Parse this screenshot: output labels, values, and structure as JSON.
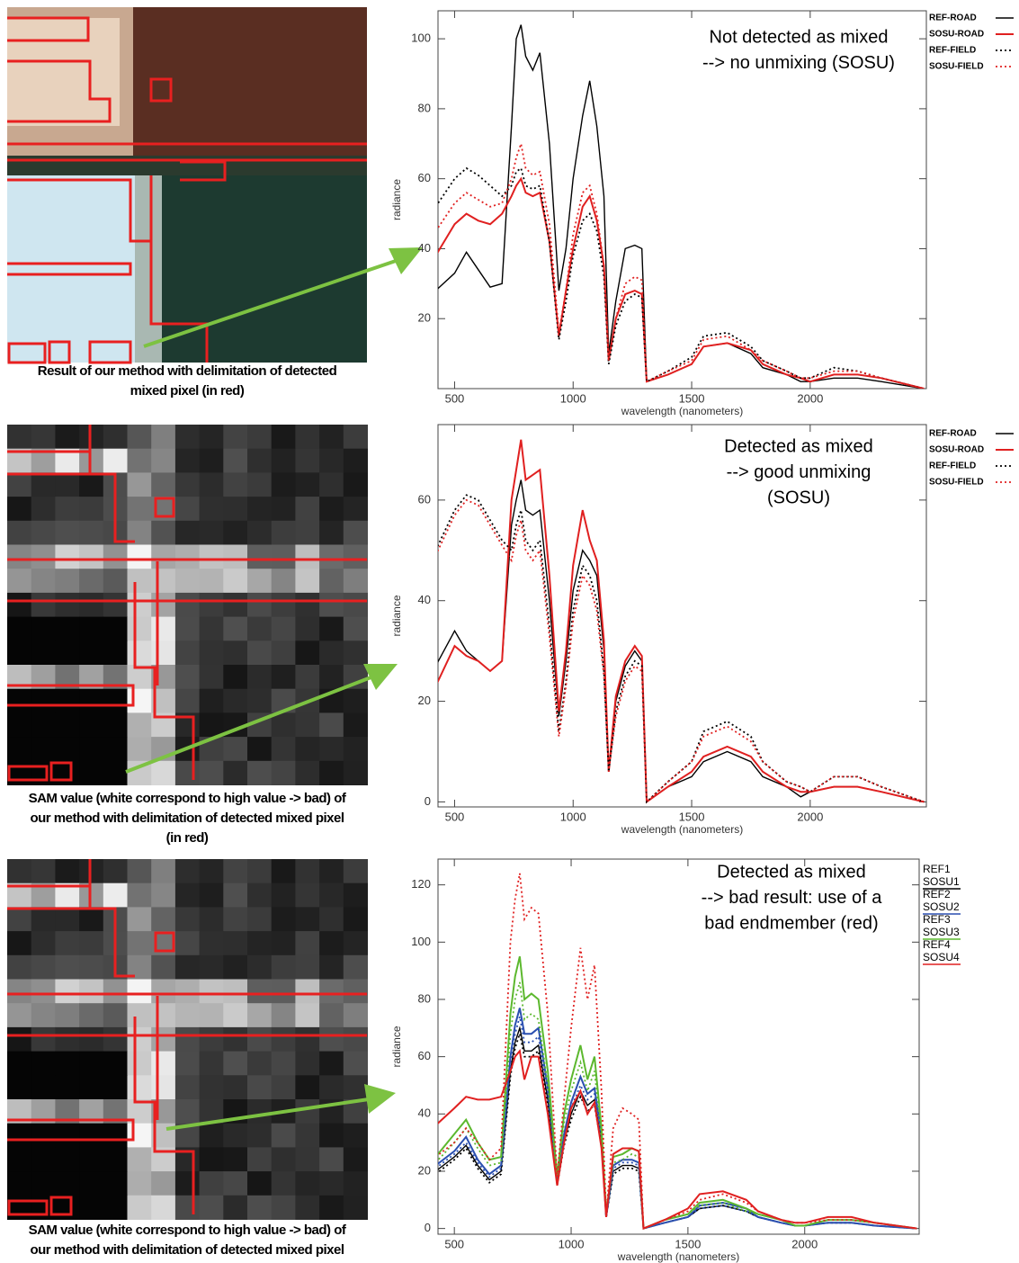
{
  "captions": [
    [
      "Result of our method with delimitation of detected",
      "mixed pixel (in red)"
    ],
    [
      "SAM value (white correspond to high value -> bad) of",
      "our method with delimitation of detected mixed pixel",
      "(in red)"
    ],
    [
      "SAM value (white correspond to high value -> bad) of",
      "our method with delimitation of detected mixed pixel"
    ]
  ],
  "chart_data": [
    {
      "type": "line",
      "annotation": [
        "Not detected as mixed",
        "--> no unmixing (SOSU)"
      ],
      "xlabel": "wavelength (nanometers)",
      "ylabel": "radiance",
      "legend_style": "line",
      "xlim": [
        430,
        2490
      ],
      "xticks": [
        500,
        1000,
        1500,
        2000
      ],
      "ylim": [
        0,
        108
      ],
      "yticks": [
        20,
        40,
        60,
        80,
        100
      ],
      "x": [
        420,
        500,
        550,
        600,
        650,
        700,
        740,
        760,
        780,
        800,
        830,
        860,
        900,
        940,
        970,
        1000,
        1040,
        1070,
        1100,
        1130,
        1150,
        1180,
        1220,
        1260,
        1290,
        1310,
        1400,
        1500,
        1550,
        1650,
        1750,
        1800,
        1900,
        1960,
        2000,
        2100,
        2200,
        2300,
        2480
      ],
      "series": [
        {
          "name": "REF-ROAD",
          "color": "#000000",
          "style": "solid",
          "values": [
            28,
            33,
            39,
            34,
            29,
            30,
            75,
            100,
            104,
            95,
            91,
            96,
            70,
            28,
            40,
            60,
            78,
            88,
            75,
            55,
            10,
            25,
            40,
            41,
            40,
            2,
            4,
            7,
            12,
            13,
            10,
            6,
            4,
            2,
            2,
            3,
            3,
            2,
            0
          ]
        },
        {
          "name": "SOSU-ROAD",
          "color": "#e02020",
          "style": "solid",
          "values": [
            38,
            47,
            50,
            48,
            47,
            50,
            55,
            58,
            60,
            56,
            55,
            56,
            42,
            15,
            28,
            40,
            52,
            55,
            48,
            35,
            8,
            20,
            27,
            28,
            27,
            2,
            4,
            7,
            12,
            13,
            11,
            7,
            4,
            3,
            2,
            4,
            4,
            3,
            0
          ]
        },
        {
          "name": "REF-FIELD",
          "color": "#000000",
          "style": "dotted",
          "values": [
            52,
            60,
            63,
            61,
            58,
            55,
            58,
            62,
            63,
            58,
            57,
            58,
            42,
            14,
            25,
            38,
            48,
            50,
            45,
            32,
            7,
            18,
            25,
            27,
            26,
            2,
            5,
            9,
            15,
            16,
            12,
            8,
            5,
            3,
            3,
            6,
            5,
            3,
            0
          ]
        },
        {
          "name": "SOSU-FIELD",
          "color": "#e02020",
          "style": "dotted",
          "values": [
            45,
            53,
            56,
            54,
            52,
            53,
            60,
            66,
            70,
            63,
            61,
            62,
            47,
            16,
            28,
            44,
            56,
            58,
            50,
            35,
            8,
            20,
            30,
            32,
            31,
            2,
            5,
            8,
            14,
            15,
            11,
            8,
            5,
            3,
            3,
            5,
            5,
            3,
            0
          ]
        }
      ]
    },
    {
      "type": "line",
      "annotation": [
        "Detected as mixed",
        "--> good unmixing",
        "(SOSU)"
      ],
      "xlabel": "wavelength (nanometers)",
      "ylabel": "radiance",
      "legend_style": "line",
      "xlim": [
        430,
        2490
      ],
      "xticks": [
        500,
        1000,
        1500,
        2000
      ],
      "ylim": [
        -1,
        75
      ],
      "yticks": [
        0,
        20,
        40,
        60
      ],
      "x": [
        420,
        500,
        550,
        600,
        650,
        700,
        740,
        760,
        780,
        800,
        830,
        860,
        900,
        940,
        970,
        1000,
        1040,
        1070,
        1100,
        1130,
        1150,
        1180,
        1220,
        1260,
        1290,
        1310,
        1400,
        1500,
        1550,
        1650,
        1750,
        1800,
        1900,
        1960,
        2000,
        2100,
        2200,
        2300,
        2480
      ],
      "series": [
        {
          "name": "REF-ROAD",
          "color": "#000000",
          "style": "solid",
          "values": [
            27,
            34,
            30,
            28,
            26,
            28,
            55,
            60,
            64,
            58,
            57,
            58,
            40,
            17,
            28,
            42,
            50,
            48,
            45,
            30,
            6,
            20,
            27,
            30,
            28,
            0,
            3,
            5,
            8,
            10,
            8,
            5,
            3,
            1,
            2,
            3,
            3,
            2,
            0
          ]
        },
        {
          "name": "SOSU-ROAD",
          "color": "#e02020",
          "style": "solid",
          "values": [
            23,
            31,
            29,
            28,
            26,
            28,
            60,
            66,
            72,
            64,
            65,
            66,
            45,
            18,
            30,
            47,
            58,
            52,
            48,
            32,
            6,
            21,
            28,
            31,
            29,
            0,
            3,
            6,
            9,
            11,
            9,
            6,
            3,
            2,
            2,
            3,
            3,
            2,
            0
          ]
        },
        {
          "name": "REF-FIELD",
          "color": "#000000",
          "style": "dotted",
          "values": [
            50,
            58,
            61,
            60,
            56,
            52,
            50,
            55,
            58,
            52,
            50,
            52,
            35,
            14,
            24,
            38,
            47,
            45,
            40,
            26,
            6,
            18,
            25,
            28,
            27,
            0,
            4,
            8,
            14,
            16,
            13,
            8,
            4,
            3,
            2,
            5,
            5,
            3,
            0
          ]
        },
        {
          "name": "SOSU-FIELD",
          "color": "#e02020",
          "style": "dotted",
          "values": [
            49,
            57,
            60,
            59,
            55,
            51,
            48,
            53,
            56,
            50,
            48,
            50,
            33,
            13,
            23,
            36,
            45,
            43,
            38,
            25,
            6,
            17,
            24,
            27,
            26,
            0,
            4,
            8,
            13,
            15,
            12,
            8,
            4,
            3,
            2,
            5,
            5,
            3,
            0
          ]
        }
      ]
    },
    {
      "type": "line",
      "annotation": [
        "Detected as mixed",
        "--> bad result: use of a",
        "bad endmember (red)"
      ],
      "xlabel": "wavelength (nanometers)",
      "ylabel": "radiance",
      "legend_style": "text",
      "xlim": [
        430,
        2490
      ],
      "xticks": [
        500,
        1000,
        1500,
        2000
      ],
      "ylim": [
        -2,
        129
      ],
      "yticks": [
        0,
        20,
        40,
        60,
        80,
        100,
        120
      ],
      "x": [
        420,
        500,
        550,
        600,
        650,
        700,
        740,
        760,
        780,
        800,
        830,
        860,
        900,
        940,
        970,
        1000,
        1040,
        1070,
        1100,
        1130,
        1150,
        1180,
        1220,
        1260,
        1290,
        1310,
        1400,
        1500,
        1550,
        1650,
        1750,
        1800,
        1900,
        1960,
        2000,
        2100,
        2200,
        2300,
        2480
      ],
      "series": [
        {
          "name": "REF1",
          "color": "#000000",
          "style": "dotted",
          "values": [
            19,
            24,
            28,
            21,
            16,
            19,
            53,
            63,
            68,
            60,
            60,
            62,
            43,
            15,
            29,
            38,
            46,
            41,
            43,
            29,
            4,
            19,
            21,
            21,
            20,
            0,
            2,
            4,
            7,
            8,
            6,
            4,
            2,
            1,
            1,
            2,
            2,
            1,
            0
          ]
        },
        {
          "name": "SOSU1",
          "color": "#000000",
          "style": "solid",
          "values": [
            20,
            25,
            29,
            22,
            17,
            20,
            55,
            65,
            70,
            62,
            62,
            64,
            45,
            16,
            30,
            40,
            48,
            43,
            45,
            30,
            4,
            20,
            22,
            22,
            21,
            0,
            2,
            4,
            7,
            8,
            6,
            4,
            2,
            1,
            1,
            2,
            2,
            1,
            0
          ]
        },
        {
          "name": "REF2",
          "color": "#2a4fb0",
          "style": "dotted",
          "values": [
            21,
            26,
            30,
            23,
            18,
            21,
            58,
            68,
            74,
            65,
            65,
            67,
            47,
            17,
            31,
            42,
            50,
            45,
            47,
            31,
            4,
            21,
            23,
            23,
            22,
            0,
            2,
            4,
            7,
            8,
            6,
            4,
            2,
            1,
            1,
            2,
            2,
            1,
            0
          ]
        },
        {
          "name": "SOSU2",
          "color": "#2a4fb0",
          "style": "solid",
          "values": [
            22,
            27,
            32,
            24,
            19,
            22,
            60,
            71,
            77,
            68,
            68,
            70,
            49,
            18,
            33,
            44,
            53,
            47,
            49,
            33,
            4,
            22,
            24,
            24,
            23,
            0,
            2,
            4,
            8,
            9,
            7,
            4,
            2,
            1,
            1,
            2,
            2,
            1,
            0
          ]
        },
        {
          "name": "REF3",
          "color": "#5cb82e",
          "style": "dotted",
          "values": [
            23,
            30,
            35,
            28,
            22,
            23,
            68,
            80,
            86,
            73,
            75,
            73,
            50,
            17,
            37,
            48,
            58,
            48,
            55,
            32,
            5,
            23,
            24,
            26,
            25,
            0,
            3,
            5,
            8,
            9,
            6,
            5,
            3,
            1,
            1,
            3,
            3,
            2,
            0
          ]
        },
        {
          "name": "SOSU3",
          "color": "#5cb82e",
          "style": "solid",
          "values": [
            25,
            33,
            38,
            30,
            24,
            25,
            75,
            88,
            95,
            80,
            82,
            80,
            55,
            18,
            40,
            52,
            64,
            52,
            60,
            35,
            5,
            25,
            26,
            28,
            27,
            0,
            3,
            5,
            9,
            10,
            7,
            5,
            3,
            1,
            1,
            3,
            3,
            2,
            0
          ]
        },
        {
          "name": "REF4",
          "color": "#e02020",
          "style": "dotted",
          "values": [
            25,
            30,
            35,
            30,
            24,
            28,
            100,
            115,
            124,
            108,
            112,
            110,
            75,
            18,
            45,
            70,
            98,
            80,
            92,
            48,
            5,
            35,
            42,
            40,
            38,
            0,
            3,
            6,
            10,
            12,
            9,
            6,
            3,
            2,
            2,
            3,
            3,
            2,
            0
          ]
        },
        {
          "name": "SOSU4",
          "color": "#e02020",
          "style": "solid",
          "values": [
            36,
            42,
            46,
            45,
            45,
            46,
            55,
            60,
            62,
            52,
            60,
            60,
            40,
            15,
            30,
            42,
            48,
            40,
            44,
            28,
            4,
            26,
            28,
            28,
            27,
            0,
            3,
            7,
            12,
            13,
            10,
            6,
            3,
            2,
            2,
            4,
            4,
            2,
            0
          ]
        }
      ]
    }
  ]
}
